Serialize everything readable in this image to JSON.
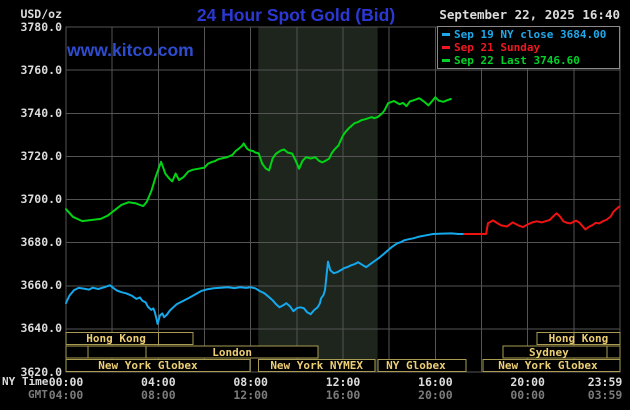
{
  "header": {
    "unit_label": "USD/oz",
    "title": "24 Hour Spot Gold (Bid)",
    "datetime": "September 22, 2025 16:40",
    "watermark": "www.kitco.com"
  },
  "legend": {
    "items": [
      {
        "text": "Sep 19 NY close 3684.00",
        "color": "#1fa8ea"
      },
      {
        "text": "Sep 21 Sunday",
        "color": "#f01820"
      },
      {
        "text": "Sep 22 Last 3746.60",
        "color": "#00d22a"
      }
    ]
  },
  "colors": {
    "background": "#000000",
    "grid": "#545454",
    "shade": "#1d251d",
    "session_border": "#a99b52",
    "session_text": "#eccf75",
    "axis_text": "#dcdcdc",
    "gmt_text": "#7b7b7b",
    "title_blue": "#2b38d4",
    "watermark_blue": "#2e4cd0",
    "legend_border": "#8a8a8a"
  },
  "axes": {
    "y_labels": [
      "3780.0",
      "3760.0",
      "3740.0",
      "3720.0",
      "3700.0",
      "3680.0",
      "3660.0",
      "3640.0",
      "3620.0"
    ],
    "x_ny_prefix": "NY Time",
    "x_gmt_prefix": "GMT",
    "x_ny_ticks": [
      {
        "label": "00:00",
        "hour": 0
      },
      {
        "label": "04:00",
        "hour": 4
      },
      {
        "label": "08:00",
        "hour": 8
      },
      {
        "label": "12:00",
        "hour": 12
      },
      {
        "label": "16:00",
        "hour": 16
      },
      {
        "label": "20:00",
        "hour": 20
      },
      {
        "label": "23:59",
        "hour": 23.5
      }
    ],
    "x_gmt_ticks": [
      {
        "label": "04:00",
        "hour": 0
      },
      {
        "label": "08:00",
        "hour": 4
      },
      {
        "label": "12:00",
        "hour": 8
      },
      {
        "label": "16:00",
        "hour": 12
      },
      {
        "label": "20:00",
        "hour": 16
      },
      {
        "label": "00:00",
        "hour": 20
      },
      {
        "label": "03:59",
        "hour": 23.5
      }
    ]
  },
  "sessions": {
    "rows": [
      {
        "cells": [
          {
            "from": 0,
            "to": 5.5,
            "label": "Hong Kong",
            "label_h": 2.17,
            "dividers": [
              4.0
            ]
          },
          {
            "from": 20.4,
            "to": 24,
            "label": "Hong Kong",
            "dividers": [
              22.0
            ]
          }
        ]
      },
      {
        "cells": [
          {
            "from": 0,
            "to": 0.95
          },
          {
            "from": 0.95,
            "to": 3.47
          },
          {
            "from": 3.47,
            "to": 10.92,
            "label": "London"
          },
          {
            "from": 18.93,
            "to": 24,
            "label": "Sydney",
            "label_h": 20.92,
            "dividers": [
              23.43
            ]
          }
        ]
      },
      {
        "cells": [
          {
            "from": 0,
            "to": 7.97,
            "label": "New York Globex",
            "label_h": 3.55
          },
          {
            "from": 8.33,
            "to": 13.39,
            "label": "New York NYMEX"
          },
          {
            "from": 13.52,
            "to": 17.33,
            "label": "NY Globex",
            "label_h": 15.16
          },
          {
            "from": 18.06,
            "to": 24,
            "label": "New York Globex",
            "label_h": 20.88
          }
        ]
      }
    ]
  },
  "chart_data": {
    "type": "line",
    "title": "24 Hour Spot Gold (Bid)",
    "xlabel": "NY Time (hours 00:00-23:59)",
    "ylabel": "USD/oz",
    "ylim": [
      3620,
      3780
    ],
    "xlim_hours": [
      0,
      24
    ],
    "grid": true,
    "legend_position": "top-right",
    "nymex_shade_hours": [
      8.33,
      13.5
    ],
    "series": [
      {
        "name": "Sep 19 NY close 3684.00",
        "color": "#14a8ec",
        "points": [
          [
            0,
            3652
          ],
          [
            0.15,
            3655.5
          ],
          [
            0.35,
            3658
          ],
          [
            0.55,
            3659
          ],
          [
            0.8,
            3658.6
          ],
          [
            1.0,
            3658.2
          ],
          [
            1.15,
            3659.1
          ],
          [
            1.4,
            3658.5
          ],
          [
            1.65,
            3659.3
          ],
          [
            1.9,
            3660.2
          ],
          [
            2.05,
            3659
          ],
          [
            2.2,
            3657.8
          ],
          [
            2.4,
            3657
          ],
          [
            2.6,
            3656.5
          ],
          [
            2.85,
            3655.4
          ],
          [
            3.05,
            3653.9
          ],
          [
            3.2,
            3654.6
          ],
          [
            3.3,
            3653.1
          ],
          [
            3.45,
            3652.3
          ],
          [
            3.55,
            3650.3
          ],
          [
            3.7,
            3648.8
          ],
          [
            3.78,
            3649.5
          ],
          [
            3.85,
            3647.7
          ],
          [
            3.92,
            3644.6
          ],
          [
            3.97,
            3642.3
          ],
          [
            4.07,
            3646.2
          ],
          [
            4.17,
            3647.2
          ],
          [
            4.25,
            3645.4
          ],
          [
            4.37,
            3646.6
          ],
          [
            4.5,
            3648.5
          ],
          [
            4.65,
            3650
          ],
          [
            4.8,
            3651.5
          ],
          [
            4.95,
            3652.3
          ],
          [
            5.1,
            3653.1
          ],
          [
            5.35,
            3654.5
          ],
          [
            5.6,
            3656
          ],
          [
            5.85,
            3657.5
          ],
          [
            6.1,
            3658.3
          ],
          [
            6.4,
            3658.8
          ],
          [
            6.7,
            3659.1
          ],
          [
            7.0,
            3659.3
          ],
          [
            7.3,
            3658.9
          ],
          [
            7.55,
            3659.3
          ],
          [
            7.8,
            3659
          ],
          [
            8.0,
            3659.3
          ],
          [
            8.2,
            3658.8
          ],
          [
            8.4,
            3657.5
          ],
          [
            8.6,
            3656.5
          ],
          [
            8.8,
            3654.7
          ],
          [
            8.95,
            3653.3
          ],
          [
            9.1,
            3651.4
          ],
          [
            9.25,
            3650
          ],
          [
            9.4,
            3650.9
          ],
          [
            9.55,
            3651.9
          ],
          [
            9.7,
            3650.5
          ],
          [
            9.85,
            3648.2
          ],
          [
            10.0,
            3649.6
          ],
          [
            10.15,
            3650
          ],
          [
            10.3,
            3649.6
          ],
          [
            10.45,
            3647.7
          ],
          [
            10.6,
            3646.8
          ],
          [
            10.75,
            3648.7
          ],
          [
            10.9,
            3650
          ],
          [
            11.0,
            3651.9
          ],
          [
            11.05,
            3654.2
          ],
          [
            11.15,
            3655.6
          ],
          [
            11.22,
            3658
          ],
          [
            11.3,
            3666
          ],
          [
            11.35,
            3671.2
          ],
          [
            11.45,
            3667.2
          ],
          [
            11.6,
            3665.8
          ],
          [
            11.75,
            3666.3
          ],
          [
            11.9,
            3667.2
          ],
          [
            12.05,
            3668.2
          ],
          [
            12.2,
            3668.7
          ],
          [
            12.35,
            3669.5
          ],
          [
            12.5,
            3670
          ],
          [
            12.65,
            3670.9
          ],
          [
            13.0,
            3668.6
          ],
          [
            13.3,
            3670.9
          ],
          [
            13.55,
            3672.8
          ],
          [
            13.85,
            3675.5
          ],
          [
            14.1,
            3677.9
          ],
          [
            14.35,
            3679.7
          ],
          [
            14.5,
            3680.2
          ],
          [
            14.65,
            3681.1
          ],
          [
            14.85,
            3681.6
          ],
          [
            15.05,
            3682
          ],
          [
            15.3,
            3682.8
          ],
          [
            15.6,
            3683.4
          ],
          [
            15.9,
            3684
          ],
          [
            16.3,
            3684.2
          ],
          [
            16.7,
            3684.3
          ],
          [
            17.0,
            3684
          ],
          [
            17.25,
            3684
          ]
        ]
      },
      {
        "name": "Sep 21 Sunday",
        "color": "#ee1212",
        "points": [
          [
            17.25,
            3684
          ],
          [
            18.2,
            3684
          ],
          [
            18.28,
            3689
          ],
          [
            18.35,
            3689.4
          ],
          [
            18.5,
            3690.3
          ],
          [
            18.7,
            3688.9
          ],
          [
            18.85,
            3688
          ],
          [
            19.1,
            3687.5
          ],
          [
            19.35,
            3689.4
          ],
          [
            19.6,
            3688
          ],
          [
            19.8,
            3687.2
          ],
          [
            20.0,
            3688.5
          ],
          [
            20.2,
            3689.4
          ],
          [
            20.4,
            3689.9
          ],
          [
            20.6,
            3689.4
          ],
          [
            20.8,
            3690
          ],
          [
            20.95,
            3690.5
          ],
          [
            21.1,
            3692.1
          ],
          [
            21.25,
            3693.6
          ],
          [
            21.4,
            3692.1
          ],
          [
            21.55,
            3689.9
          ],
          [
            21.7,
            3689.2
          ],
          [
            21.85,
            3688.9
          ],
          [
            22.0,
            3689.7
          ],
          [
            22.1,
            3690.2
          ],
          [
            22.25,
            3689.2
          ],
          [
            22.4,
            3687.3
          ],
          [
            22.5,
            3686.1
          ],
          [
            22.65,
            3687.3
          ],
          [
            22.8,
            3688.1
          ],
          [
            22.95,
            3689.2
          ],
          [
            23.1,
            3688.9
          ],
          [
            23.25,
            3689.9
          ],
          [
            23.4,
            3690.5
          ],
          [
            23.6,
            3692.1
          ],
          [
            23.7,
            3694.1
          ],
          [
            23.8,
            3695.2
          ],
          [
            23.9,
            3696.1
          ],
          [
            23.98,
            3696.8
          ]
        ]
      },
      {
        "name": "Sep 22 Last 3746.60",
        "color": "#00d414",
        "points": [
          [
            0,
            3695.5
          ],
          [
            0.3,
            3692
          ],
          [
            0.7,
            3690
          ],
          [
            1.1,
            3690.5
          ],
          [
            1.5,
            3691
          ],
          [
            1.8,
            3692.5
          ],
          [
            2.1,
            3695
          ],
          [
            2.4,
            3697.5
          ],
          [
            2.7,
            3698.7
          ],
          [
            3.0,
            3698.3
          ],
          [
            3.2,
            3697.5
          ],
          [
            3.35,
            3697
          ],
          [
            3.5,
            3699
          ],
          [
            3.7,
            3704
          ],
          [
            3.9,
            3711
          ],
          [
            4.05,
            3715.5
          ],
          [
            4.12,
            3717.5
          ],
          [
            4.3,
            3712
          ],
          [
            4.45,
            3710
          ],
          [
            4.6,
            3708.4
          ],
          [
            4.75,
            3712
          ],
          [
            4.9,
            3709
          ],
          [
            5.1,
            3710.5
          ],
          [
            5.3,
            3713
          ],
          [
            5.5,
            3713.8
          ],
          [
            5.75,
            3714.3
          ],
          [
            6.0,
            3714.8
          ],
          [
            6.15,
            3716.6
          ],
          [
            6.3,
            3717.3
          ],
          [
            6.45,
            3717.8
          ],
          [
            6.6,
            3718.7
          ],
          [
            6.8,
            3719.2
          ],
          [
            7.0,
            3719.7
          ],
          [
            7.2,
            3720.6
          ],
          [
            7.35,
            3722.5
          ],
          [
            7.5,
            3723.7
          ],
          [
            7.62,
            3724.8
          ],
          [
            7.7,
            3726
          ],
          [
            7.85,
            3723.5
          ],
          [
            7.95,
            3722.8
          ],
          [
            8.1,
            3722.5
          ],
          [
            8.2,
            3721.8
          ],
          [
            8.35,
            3721.4
          ],
          [
            8.5,
            3716.6
          ],
          [
            8.65,
            3714.4
          ],
          [
            8.8,
            3713.5
          ],
          [
            8.95,
            3719
          ],
          [
            9.1,
            3721.3
          ],
          [
            9.3,
            3722.7
          ],
          [
            9.45,
            3723.2
          ],
          [
            9.6,
            3721.8
          ],
          [
            9.8,
            3721.3
          ],
          [
            9.95,
            3718
          ],
          [
            10.1,
            3714.3
          ],
          [
            10.25,
            3718
          ],
          [
            10.4,
            3719.6
          ],
          [
            10.6,
            3719
          ],
          [
            10.8,
            3719.6
          ],
          [
            10.95,
            3718
          ],
          [
            11.1,
            3717.2
          ],
          [
            11.25,
            3718
          ],
          [
            11.4,
            3719
          ],
          [
            11.5,
            3721.3
          ],
          [
            11.6,
            3722.8
          ],
          [
            11.7,
            3724
          ],
          [
            11.8,
            3725
          ],
          [
            11.9,
            3727.4
          ],
          [
            12.0,
            3729.7
          ],
          [
            12.1,
            3731.2
          ],
          [
            12.25,
            3733
          ],
          [
            12.4,
            3734.4
          ],
          [
            12.5,
            3735.4
          ],
          [
            12.65,
            3735.9
          ],
          [
            12.8,
            3736.8
          ],
          [
            12.95,
            3737.2
          ],
          [
            13.1,
            3737.7
          ],
          [
            13.25,
            3738.2
          ],
          [
            13.35,
            3737.7
          ],
          [
            13.5,
            3738.2
          ],
          [
            13.6,
            3739.1
          ],
          [
            13.7,
            3740
          ],
          [
            13.8,
            3741.4
          ],
          [
            13.95,
            3744.6
          ],
          [
            14.2,
            3745.7
          ],
          [
            14.45,
            3744.2
          ],
          [
            14.6,
            3744.8
          ],
          [
            14.75,
            3743.3
          ],
          [
            14.9,
            3745.5
          ],
          [
            15.1,
            3746.2
          ],
          [
            15.3,
            3747
          ],
          [
            15.5,
            3745.5
          ],
          [
            15.7,
            3743.7
          ],
          [
            15.85,
            3745.5
          ],
          [
            16.0,
            3747.4
          ],
          [
            16.15,
            3745.8
          ],
          [
            16.35,
            3745.3
          ],
          [
            16.5,
            3746
          ],
          [
            16.67,
            3746.6
          ]
        ]
      }
    ]
  }
}
